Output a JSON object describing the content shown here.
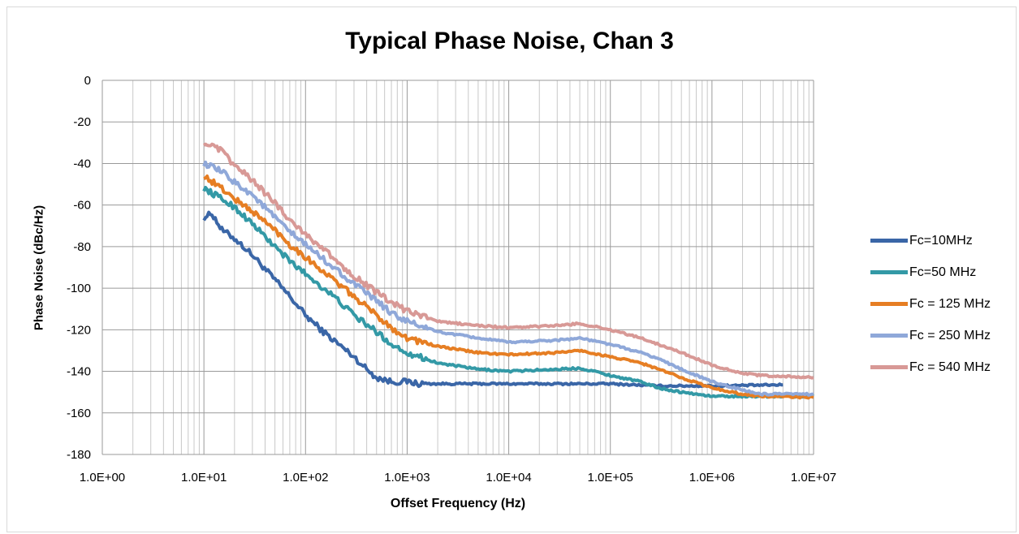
{
  "chart_data": {
    "type": "line",
    "title": "Typical Phase Noise, Chan 3",
    "xlabel": "Offset Frequency (Hz)",
    "ylabel": "Phase Noise (dBc/Hz)",
    "x_scale": "log",
    "xlim": [
      1,
      10000000
    ],
    "ylim": [
      -180,
      0
    ],
    "x_ticks": [
      "1.0E+00",
      "1.0E+01",
      "1.0E+02",
      "1.0E+03",
      "1.0E+04",
      "1.0E+05",
      "1.0E+06",
      "1.0E+07"
    ],
    "y_ticks": [
      "0",
      "-20",
      "-40",
      "-60",
      "-80",
      "-100",
      "-120",
      "-140",
      "-160",
      "-180"
    ],
    "grid": true,
    "legend_position": "right",
    "series": [
      {
        "name": "Fc=10MHz",
        "color": "#3a66a7",
        "points": [
          [
            10,
            -66
          ],
          [
            12,
            -64
          ],
          [
            15,
            -72
          ],
          [
            20,
            -76
          ],
          [
            30,
            -84
          ],
          [
            50,
            -96
          ],
          [
            70,
            -104
          ],
          [
            100,
            -113
          ],
          [
            150,
            -121
          ],
          [
            200,
            -126
          ],
          [
            300,
            -133
          ],
          [
            400,
            -139
          ],
          [
            500,
            -143
          ],
          [
            700,
            -145
          ],
          [
            1000,
            -145
          ],
          [
            1300,
            -146
          ],
          [
            2000,
            -146
          ],
          [
            5000,
            -146
          ],
          [
            10000,
            -146
          ],
          [
            50000,
            -146
          ],
          [
            100000,
            -146
          ],
          [
            300000,
            -147
          ],
          [
            1000000,
            -147
          ],
          [
            5000000,
            -146.5
          ]
        ]
      },
      {
        "name": "Fc=50 MHz",
        "color": "#3399a6",
        "points": [
          [
            10,
            -52
          ],
          [
            15,
            -57
          ],
          [
            20,
            -61
          ],
          [
            30,
            -69
          ],
          [
            50,
            -80
          ],
          [
            70,
            -87
          ],
          [
            100,
            -93
          ],
          [
            150,
            -100
          ],
          [
            200,
            -105
          ],
          [
            300,
            -113
          ],
          [
            500,
            -121
          ],
          [
            700,
            -127
          ],
          [
            1000,
            -131
          ],
          [
            2000,
            -136
          ],
          [
            5000,
            -139
          ],
          [
            10000,
            -140
          ],
          [
            30000,
            -139
          ],
          [
            50000,
            -138.5
          ],
          [
            70000,
            -140
          ],
          [
            100000,
            -142
          ],
          [
            200000,
            -145
          ],
          [
            300000,
            -148
          ],
          [
            500000,
            -150
          ],
          [
            1000000,
            -152
          ],
          [
            3000000,
            -152
          ],
          [
            10000000,
            -152
          ]
        ]
      },
      {
        "name": "Fc = 125 MHz",
        "color": "#e67e23",
        "points": [
          [
            10,
            -46
          ],
          [
            15,
            -52
          ],
          [
            20,
            -57
          ],
          [
            30,
            -63
          ],
          [
            50,
            -72
          ],
          [
            70,
            -79
          ],
          [
            100,
            -85
          ],
          [
            150,
            -92
          ],
          [
            200,
            -97
          ],
          [
            300,
            -104
          ],
          [
            500,
            -113
          ],
          [
            700,
            -119
          ],
          [
            1000,
            -124
          ],
          [
            2000,
            -128
          ],
          [
            5000,
            -131
          ],
          [
            10000,
            -132
          ],
          [
            30000,
            -131
          ],
          [
            50000,
            -130
          ],
          [
            70000,
            -131.5
          ],
          [
            100000,
            -133
          ],
          [
            200000,
            -136
          ],
          [
            300000,
            -139
          ],
          [
            500000,
            -143
          ],
          [
            1000000,
            -148
          ],
          [
            2000000,
            -151
          ],
          [
            3000000,
            -152
          ],
          [
            10000000,
            -152.5
          ]
        ]
      },
      {
        "name": "Fc = 250 MHz",
        "color": "#8fa8d9",
        "points": [
          [
            10,
            -40
          ],
          [
            15,
            -44
          ],
          [
            20,
            -49
          ],
          [
            30,
            -55
          ],
          [
            50,
            -66
          ],
          [
            70,
            -73
          ],
          [
            100,
            -79
          ],
          [
            150,
            -86
          ],
          [
            200,
            -91
          ],
          [
            300,
            -98
          ],
          [
            500,
            -106
          ],
          [
            700,
            -112
          ],
          [
            1000,
            -116
          ],
          [
            2000,
            -121
          ],
          [
            5000,
            -124
          ],
          [
            10000,
            -126
          ],
          [
            30000,
            -125
          ],
          [
            50000,
            -124
          ],
          [
            70000,
            -125.5
          ],
          [
            100000,
            -127
          ],
          [
            200000,
            -131
          ],
          [
            300000,
            -134
          ],
          [
            500000,
            -139
          ],
          [
            1000000,
            -145
          ],
          [
            2000000,
            -149
          ],
          [
            3000000,
            -151
          ],
          [
            10000000,
            -151
          ]
        ]
      },
      {
        "name": "Fc = 540 MHz",
        "color": "#d89996",
        "points": [
          [
            10,
            -30
          ],
          [
            15,
            -34
          ],
          [
            20,
            -41
          ],
          [
            30,
            -48
          ],
          [
            50,
            -59
          ],
          [
            70,
            -67
          ],
          [
            100,
            -74
          ],
          [
            150,
            -81
          ],
          [
            200,
            -87
          ],
          [
            300,
            -94
          ],
          [
            500,
            -102
          ],
          [
            700,
            -107
          ],
          [
            1000,
            -111
          ],
          [
            2000,
            -116
          ],
          [
            5000,
            -118
          ],
          [
            10000,
            -119
          ],
          [
            30000,
            -118
          ],
          [
            50000,
            -117
          ],
          [
            70000,
            -118.5
          ],
          [
            100000,
            -120
          ],
          [
            200000,
            -124
          ],
          [
            300000,
            -127
          ],
          [
            500000,
            -131
          ],
          [
            1000000,
            -137
          ],
          [
            2000000,
            -141
          ],
          [
            3000000,
            -142
          ],
          [
            10000000,
            -143
          ]
        ]
      }
    ]
  }
}
